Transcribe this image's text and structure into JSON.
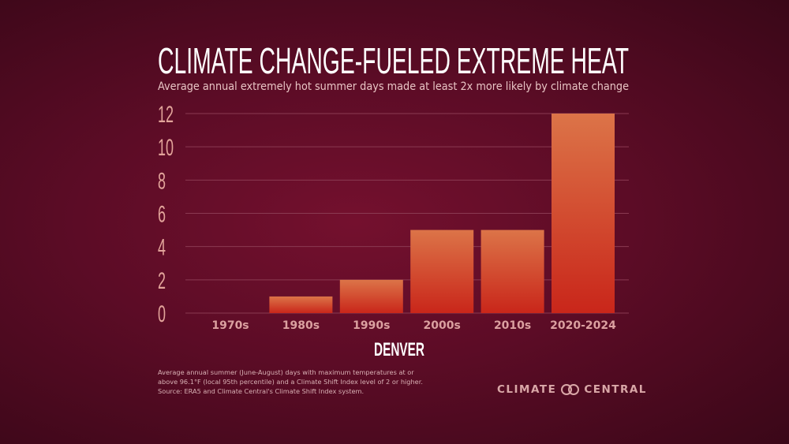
{
  "chart_data": {
    "type": "bar",
    "title": "CLIMATE CHANGE-FUELED EXTREME HEAT",
    "subtitle": "Average annual extremely hot summer days made at least 2x more likely by climate change",
    "xlabel": "DENVER",
    "ylabel": "",
    "categories": [
      "1970s",
      "1980s",
      "1990s",
      "2000s",
      "2010s",
      "2020-2024"
    ],
    "values": [
      0,
      1,
      2,
      5,
      5,
      12
    ],
    "ylim": [
      0,
      12
    ],
    "yticks": [
      0,
      2,
      4,
      6,
      8,
      10,
      12
    ],
    "grid": true,
    "colors": {
      "bar_top": "#dc7448",
      "bar_bottom": "#c9261a",
      "tick_label": "#e2a49a",
      "category_label": "#dba0a0",
      "grid": "#8a3a52"
    }
  },
  "footnote": [
    "Average annual summer (June-August) days with maximum temperatures at or",
    "above 96.1°F (local 95th percentile) and a Climate Shift Index level of 2 or higher.",
    "Source: ERA5 and Climate Central's Climate Shift Index system."
  ],
  "logo": {
    "left": "CLIMATE",
    "right": "CENTRAL"
  }
}
